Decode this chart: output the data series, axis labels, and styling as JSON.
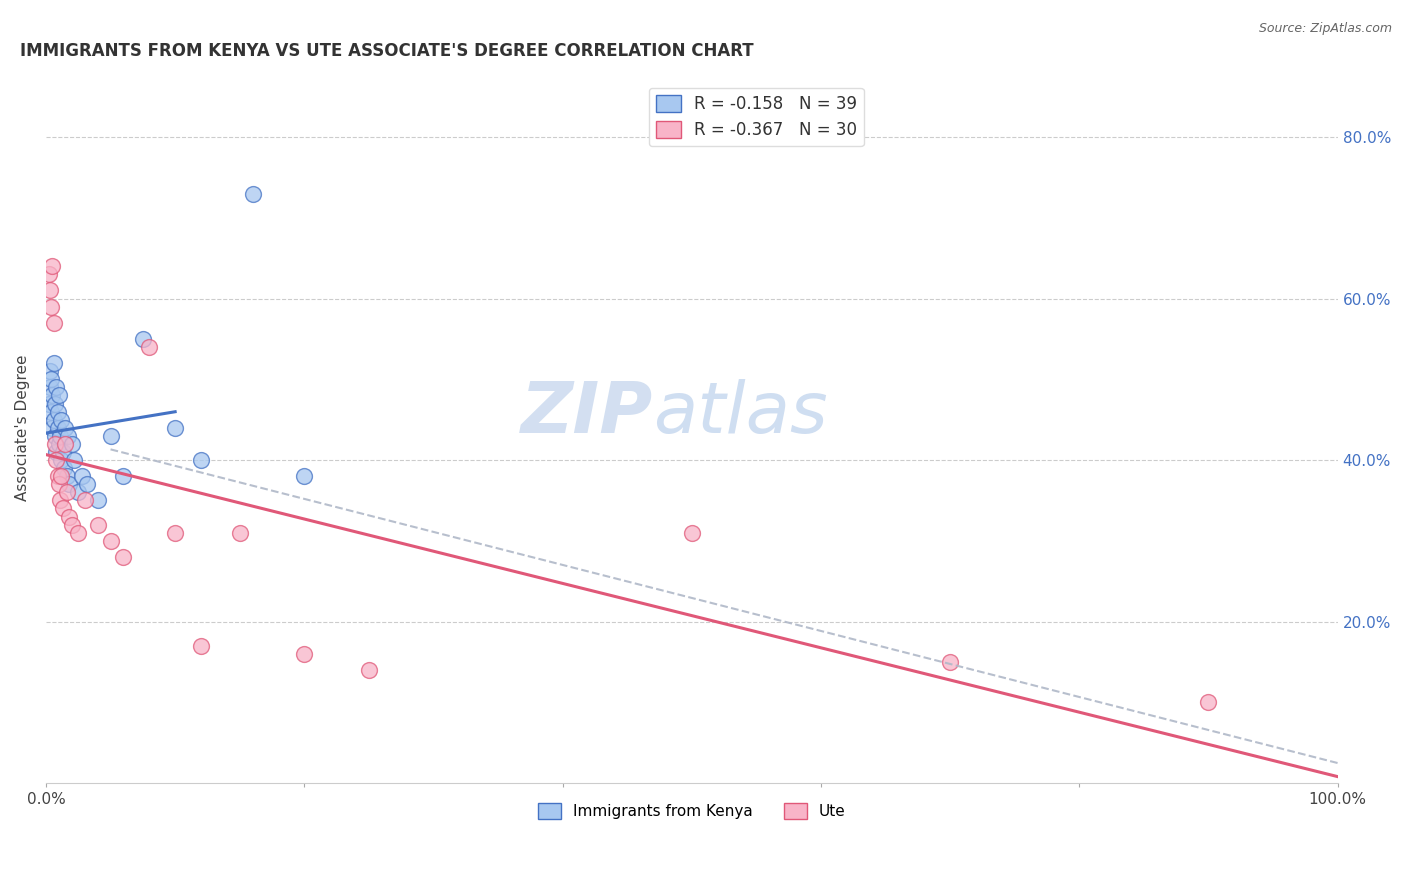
{
  "title": "IMMIGRANTS FROM KENYA VS UTE ASSOCIATE'S DEGREE CORRELATION CHART",
  "source": "Source: ZipAtlas.com",
  "ylabel": "Associate's Degree",
  "legend_label1": "Immigrants from Kenya",
  "legend_label2": "Ute",
  "r1": -0.158,
  "n1": 39,
  "r2": -0.367,
  "n2": 30,
  "watermark_zip": "ZIP",
  "watermark_atlas": "atlas",
  "xlim": [
    0.0,
    1.0
  ],
  "ylim": [
    0.0,
    0.88
  ],
  "xticks": [
    0.0,
    0.2,
    0.4,
    0.6,
    0.8,
    1.0
  ],
  "xtick_labels": [
    "0.0%",
    "",
    "",
    "",
    "",
    "100.0%"
  ],
  "yticks": [
    0.2,
    0.4,
    0.6,
    0.8
  ],
  "ytick_labels": [
    "20.0%",
    "40.0%",
    "60.0%",
    "80.0%"
  ],
  "color_blue": "#a8c8f0",
  "color_pink": "#f8b4c8",
  "line_blue": "#4472c4",
  "line_pink": "#e05878",
  "line_dashed": "#b0b8c8",
  "kenya_x": [
    0.002,
    0.003,
    0.003,
    0.004,
    0.004,
    0.005,
    0.005,
    0.006,
    0.006,
    0.007,
    0.007,
    0.008,
    0.008,
    0.009,
    0.009,
    0.01,
    0.01,
    0.011,
    0.012,
    0.012,
    0.013,
    0.014,
    0.015,
    0.016,
    0.017,
    0.018,
    0.02,
    0.022,
    0.025,
    0.028,
    0.032,
    0.04,
    0.05,
    0.06,
    0.075,
    0.1,
    0.12,
    0.16,
    0.2
  ],
  "kenya_y": [
    0.47,
    0.49,
    0.51,
    0.46,
    0.5,
    0.44,
    0.48,
    0.45,
    0.52,
    0.43,
    0.47,
    0.41,
    0.49,
    0.44,
    0.46,
    0.42,
    0.48,
    0.43,
    0.45,
    0.4,
    0.41,
    0.39,
    0.44,
    0.38,
    0.43,
    0.37,
    0.42,
    0.4,
    0.36,
    0.38,
    0.37,
    0.35,
    0.43,
    0.38,
    0.55,
    0.44,
    0.4,
    0.73,
    0.38
  ],
  "ute_x": [
    0.002,
    0.003,
    0.004,
    0.005,
    0.006,
    0.007,
    0.008,
    0.009,
    0.01,
    0.011,
    0.012,
    0.013,
    0.015,
    0.016,
    0.018,
    0.02,
    0.025,
    0.03,
    0.04,
    0.05,
    0.06,
    0.08,
    0.1,
    0.12,
    0.15,
    0.2,
    0.25,
    0.5,
    0.7,
    0.9
  ],
  "ute_y": [
    0.63,
    0.61,
    0.59,
    0.64,
    0.57,
    0.42,
    0.4,
    0.38,
    0.37,
    0.35,
    0.38,
    0.34,
    0.42,
    0.36,
    0.33,
    0.32,
    0.31,
    0.35,
    0.32,
    0.3,
    0.28,
    0.54,
    0.31,
    0.17,
    0.31,
    0.16,
    0.14,
    0.31,
    0.15,
    0.1
  ]
}
